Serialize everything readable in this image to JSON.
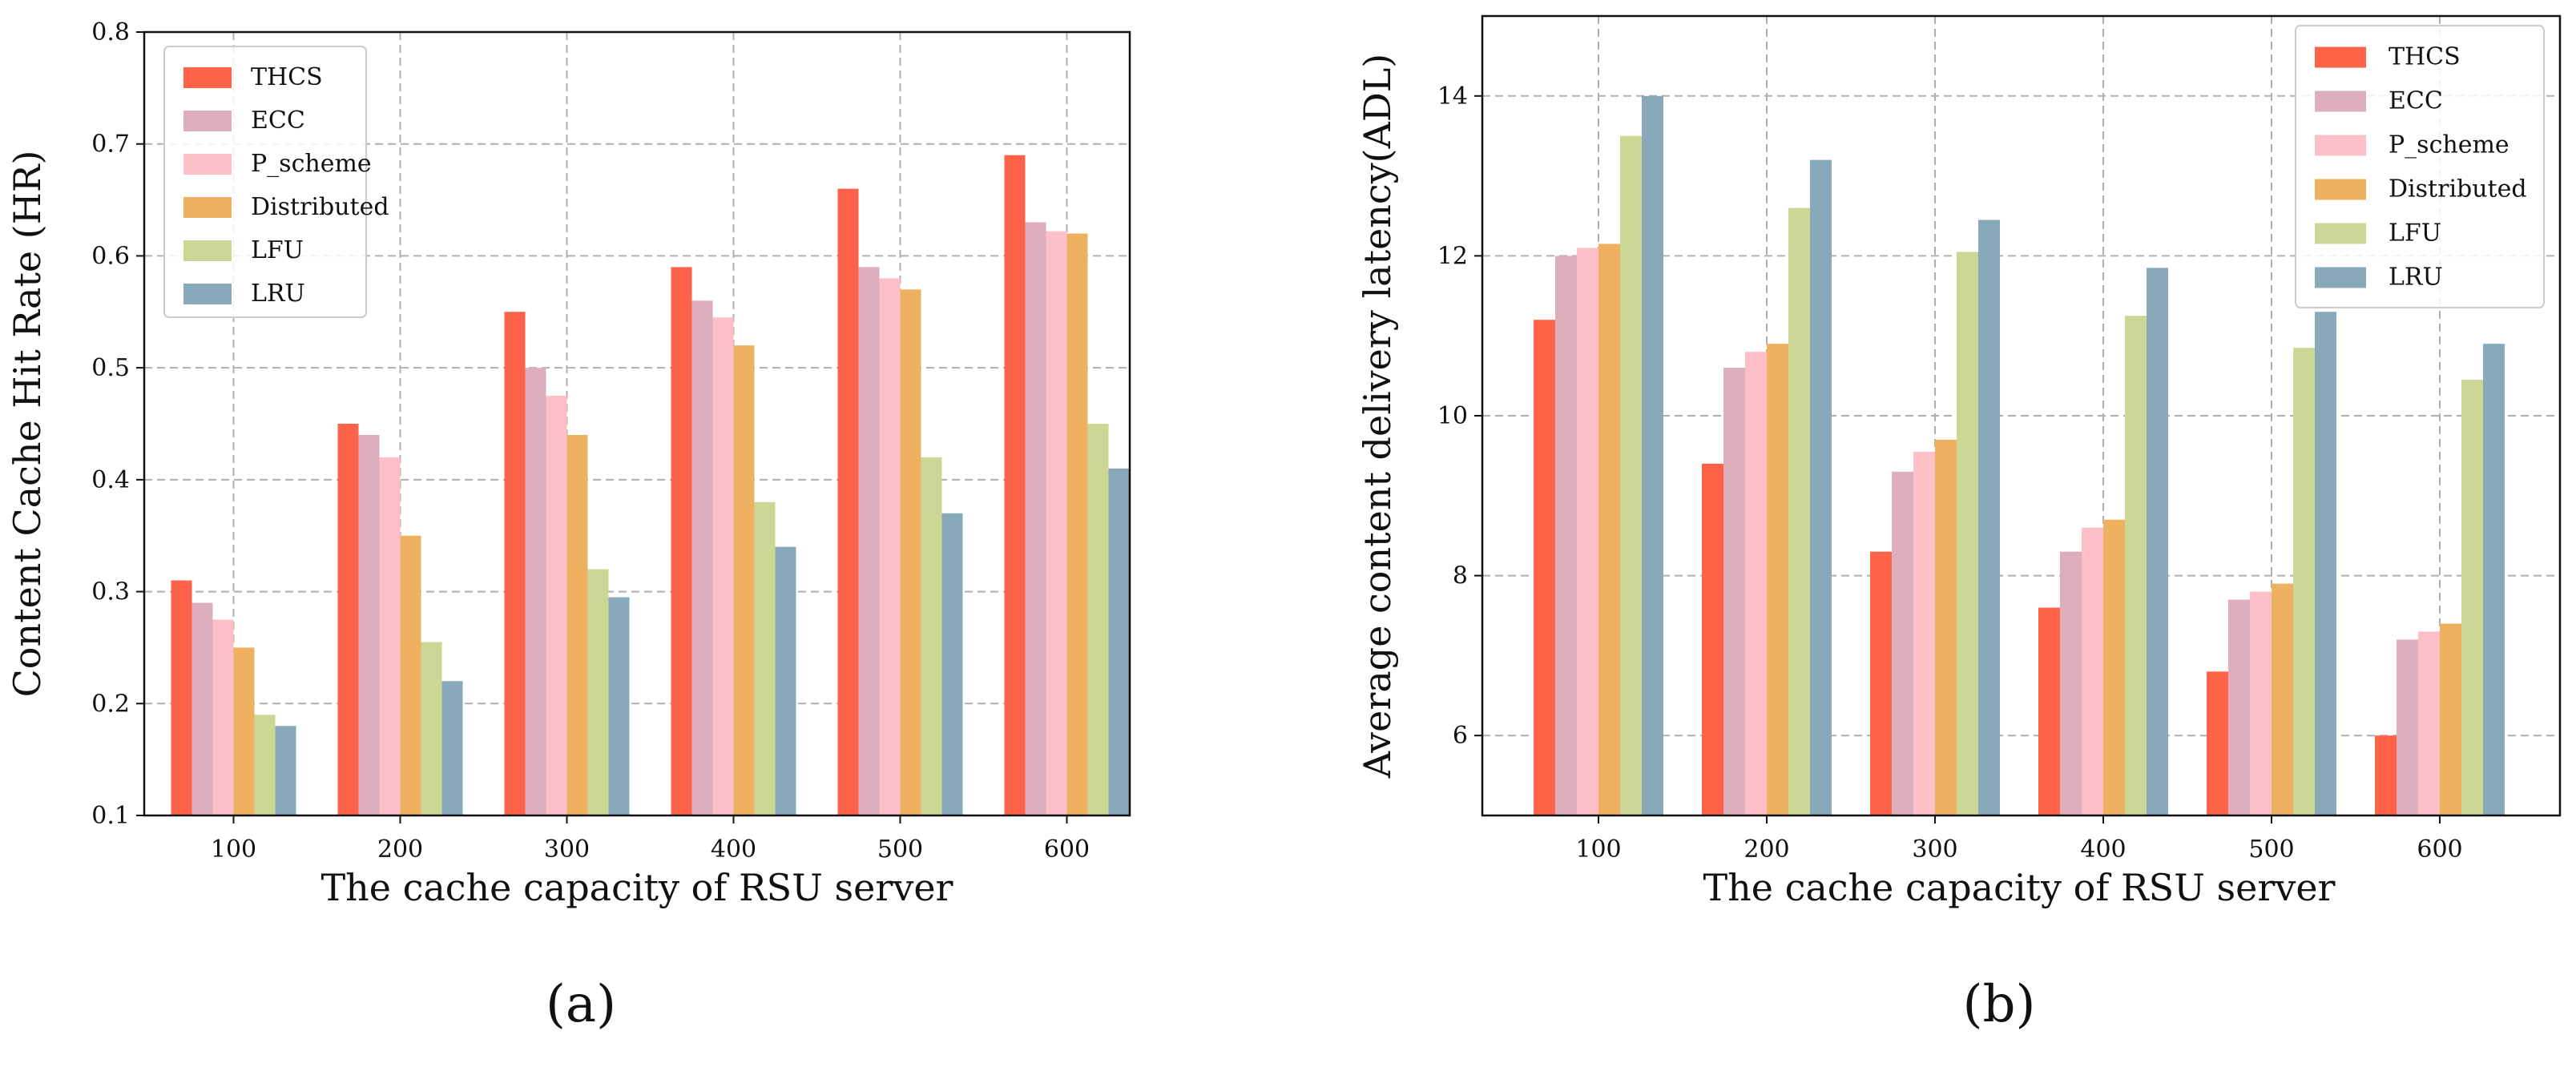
{
  "colors": {
    "THCS": "#fe634a",
    "ECC": "#ddafbc",
    "P_scheme": "#fdc0c8",
    "Distributed": "#edb160",
    "LFU": "#cdd795",
    "LRU": "#88a9ba"
  },
  "chart_data": [
    {
      "type": "bar",
      "panel_label": "(a)",
      "xlabel": "The cache capacity of RSU server",
      "ylabel": "Content Cache Hit Rate (HR)",
      "ylim": [
        0.1,
        0.8
      ],
      "yticks": [
        "0.1",
        "0.2",
        "0.3",
        "0.4",
        "0.5",
        "0.6",
        "0.7",
        "0.8"
      ],
      "grid": true,
      "legend_position": "top-left",
      "categories": [
        "100",
        "200",
        "300",
        "400",
        "500",
        "600"
      ],
      "series": [
        {
          "name": "THCS",
          "values": [
            0.31,
            0.45,
            0.55,
            0.59,
            0.66,
            0.69
          ]
        },
        {
          "name": "ECC",
          "values": [
            0.29,
            0.44,
            0.5,
            0.56,
            0.59,
            0.63
          ]
        },
        {
          "name": "P_scheme",
          "values": [
            0.275,
            0.42,
            0.475,
            0.545,
            0.58,
            0.622
          ]
        },
        {
          "name": "Distributed",
          "values": [
            0.25,
            0.35,
            0.44,
            0.52,
            0.57,
            0.62
          ]
        },
        {
          "name": "LFU",
          "values": [
            0.19,
            0.255,
            0.32,
            0.38,
            0.42,
            0.45
          ]
        },
        {
          "name": "LRU",
          "values": [
            0.18,
            0.22,
            0.295,
            0.34,
            0.37,
            0.41
          ]
        }
      ]
    },
    {
      "type": "bar",
      "panel_label": "(b)",
      "xlabel": "The cache capacity of RSU server",
      "ylabel": "Average content delivery latency(ADL)",
      "ylim": [
        5,
        15
      ],
      "yticks": [
        "6",
        "8",
        "10",
        "12",
        "14"
      ],
      "grid": true,
      "legend_position": "top-right",
      "categories": [
        "100",
        "200",
        "300",
        "400",
        "500",
        "600"
      ],
      "series": [
        {
          "name": "THCS",
          "values": [
            11.2,
            9.4,
            8.3,
            7.6,
            6.8,
            6.0
          ]
        },
        {
          "name": "ECC",
          "values": [
            12.0,
            10.6,
            9.3,
            8.3,
            7.7,
            7.2
          ]
        },
        {
          "name": "P_scheme",
          "values": [
            12.1,
            10.8,
            9.55,
            8.6,
            7.8,
            7.3
          ]
        },
        {
          "name": "Distributed",
          "values": [
            12.15,
            10.9,
            9.7,
            8.7,
            7.9,
            7.4
          ]
        },
        {
          "name": "LFU",
          "values": [
            13.5,
            12.6,
            12.05,
            11.25,
            10.85,
            10.45
          ]
        },
        {
          "name": "LRU",
          "values": [
            14.0,
            13.2,
            12.45,
            11.85,
            11.3,
            10.9
          ]
        }
      ]
    }
  ]
}
